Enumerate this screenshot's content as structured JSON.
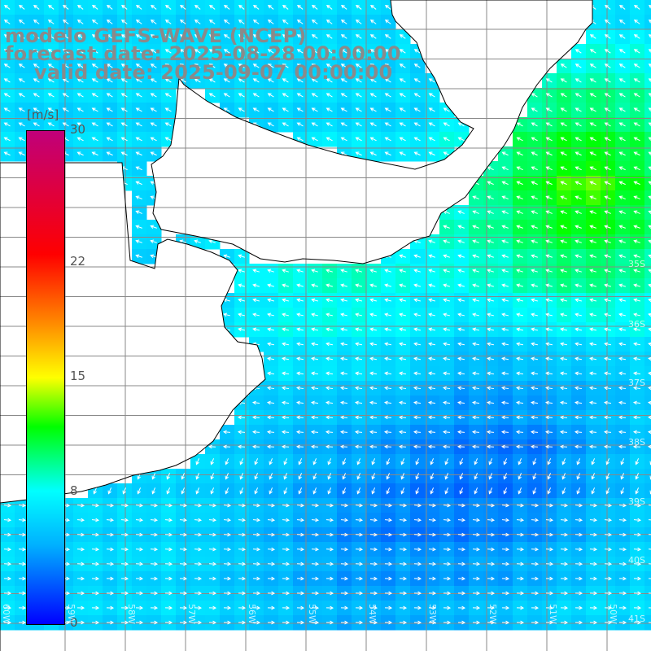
{
  "title": {
    "line1": "modelo GEFS-WAVE (NCEP)",
    "line2": "forecast date: 2025-08-28 00:00:00",
    "line3": "valid date: 2025-09-07 00:00:00"
  },
  "colorbar": {
    "unit": "[m/s]",
    "min": 0,
    "max": 30,
    "ticks": [
      {
        "value": 30,
        "label": "30"
      },
      {
        "value": 22,
        "label": "22"
      },
      {
        "value": 15,
        "label": "15"
      },
      {
        "value": 8,
        "label": "8"
      },
      {
        "value": 0,
        "label": "0"
      }
    ],
    "colors": {
      "low": "#0000ff",
      "mid_low": "#00b0ff",
      "cyan": "#00ffff",
      "green": "#00ff00",
      "yellow": "#ffff00",
      "orange": "#ff8000",
      "red": "#ff0000",
      "high": "#c0007a"
    }
  },
  "map": {
    "variable": "wind speed and direction",
    "land_color": "#ffffff",
    "grid_color": "#888888",
    "lat_labels": [
      "35S",
      "36S",
      "37S",
      "38S",
      "39S",
      "40S",
      "41S"
    ],
    "lon_labels": [
      "60W",
      "59W",
      "58W",
      "57W",
      "56W",
      "55W",
      "54W",
      "53W",
      "52W",
      "51W",
      "50W"
    ]
  }
}
